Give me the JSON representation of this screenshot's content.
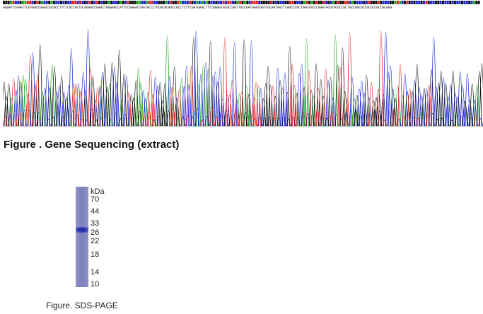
{
  "sequencing": {
    "caption": "Figure . Gene Sequencing (extract)",
    "sequence": "GGGATCCGAATTCGTGACCGAGCCGCGCCTTCTCGCTGCTGCGGAGCCGAGCTGGGAACCATTCCGGGACTGGTACCCTGCACACAGCCGCCTCTTCGATGAGCTTTCGGGGTGCGCCGGTTGCCGATGAGTGGTCGCAGTGGTTCAGCCCGCTGGGTGCCCGGATACGTGCGCCGCTGCCGGCGCCGCGCCGCCGCAGG",
    "base_colors": {
      "A": "#1faa1f",
      "C": "#1c2ad6",
      "G": "#111111",
      "T": "#e02424"
    }
  },
  "gel": {
    "unit": "kDa",
    "markers": [
      "70",
      "44",
      "33",
      "26",
      "22",
      "18",
      "14",
      "10"
    ],
    "caption": "Figure. SDS-PAGE",
    "lane_color": "#7b7fbd",
    "band_color": "#1e2aa8"
  }
}
